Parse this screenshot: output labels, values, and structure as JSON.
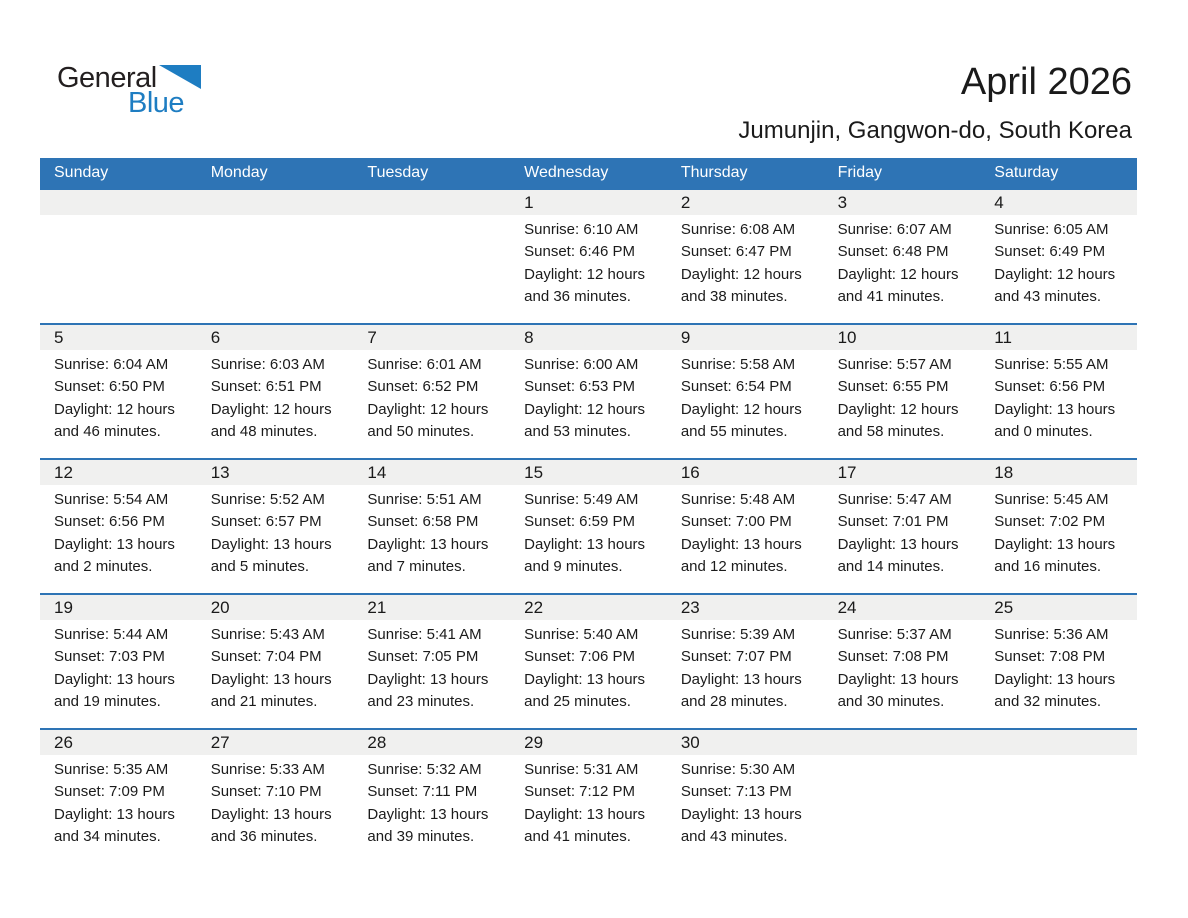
{
  "logo": {
    "text_top": "General",
    "text_bottom": "Blue",
    "colors": {
      "dark": "#231F20",
      "blue": "#1E7DC2"
    }
  },
  "header": {
    "title": "April 2026",
    "subtitle": "Jumunjin, Gangwon-do, South Korea"
  },
  "calendar": {
    "colors": {
      "header_bg": "#2E74B5",
      "week_divider": "#2E74B5",
      "day_number_band_bg": "#F0F0EF",
      "header_text": "#FFFFFF",
      "body_text": "#1B1B1B"
    },
    "weekdays": [
      "Sunday",
      "Monday",
      "Tuesday",
      "Wednesday",
      "Thursday",
      "Friday",
      "Saturday"
    ],
    "weeks": [
      [
        null,
        null,
        null,
        {
          "num": "1",
          "lines": [
            "Sunrise: 6:10 AM",
            "Sunset: 6:46 PM",
            "Daylight: 12 hours",
            "and 36 minutes."
          ]
        },
        {
          "num": "2",
          "lines": [
            "Sunrise: 6:08 AM",
            "Sunset: 6:47 PM",
            "Daylight: 12 hours",
            "and 38 minutes."
          ]
        },
        {
          "num": "3",
          "lines": [
            "Sunrise: 6:07 AM",
            "Sunset: 6:48 PM",
            "Daylight: 12 hours",
            "and 41 minutes."
          ]
        },
        {
          "num": "4",
          "lines": [
            "Sunrise: 6:05 AM",
            "Sunset: 6:49 PM",
            "Daylight: 12 hours",
            "and 43 minutes."
          ]
        }
      ],
      [
        {
          "num": "5",
          "lines": [
            "Sunrise: 6:04 AM",
            "Sunset: 6:50 PM",
            "Daylight: 12 hours",
            "and 46 minutes."
          ]
        },
        {
          "num": "6",
          "lines": [
            "Sunrise: 6:03 AM",
            "Sunset: 6:51 PM",
            "Daylight: 12 hours",
            "and 48 minutes."
          ]
        },
        {
          "num": "7",
          "lines": [
            "Sunrise: 6:01 AM",
            "Sunset: 6:52 PM",
            "Daylight: 12 hours",
            "and 50 minutes."
          ]
        },
        {
          "num": "8",
          "lines": [
            "Sunrise: 6:00 AM",
            "Sunset: 6:53 PM",
            "Daylight: 12 hours",
            "and 53 minutes."
          ]
        },
        {
          "num": "9",
          "lines": [
            "Sunrise: 5:58 AM",
            "Sunset: 6:54 PM",
            "Daylight: 12 hours",
            "and 55 minutes."
          ]
        },
        {
          "num": "10",
          "lines": [
            "Sunrise: 5:57 AM",
            "Sunset: 6:55 PM",
            "Daylight: 12 hours",
            "and 58 minutes."
          ]
        },
        {
          "num": "11",
          "lines": [
            "Sunrise: 5:55 AM",
            "Sunset: 6:56 PM",
            "Daylight: 13 hours",
            "and 0 minutes."
          ]
        }
      ],
      [
        {
          "num": "12",
          "lines": [
            "Sunrise: 5:54 AM",
            "Sunset: 6:56 PM",
            "Daylight: 13 hours",
            "and 2 minutes."
          ]
        },
        {
          "num": "13",
          "lines": [
            "Sunrise: 5:52 AM",
            "Sunset: 6:57 PM",
            "Daylight: 13 hours",
            "and 5 minutes."
          ]
        },
        {
          "num": "14",
          "lines": [
            "Sunrise: 5:51 AM",
            "Sunset: 6:58 PM",
            "Daylight: 13 hours",
            "and 7 minutes."
          ]
        },
        {
          "num": "15",
          "lines": [
            "Sunrise: 5:49 AM",
            "Sunset: 6:59 PM",
            "Daylight: 13 hours",
            "and 9 minutes."
          ]
        },
        {
          "num": "16",
          "lines": [
            "Sunrise: 5:48 AM",
            "Sunset: 7:00 PM",
            "Daylight: 13 hours",
            "and 12 minutes."
          ]
        },
        {
          "num": "17",
          "lines": [
            "Sunrise: 5:47 AM",
            "Sunset: 7:01 PM",
            "Daylight: 13 hours",
            "and 14 minutes."
          ]
        },
        {
          "num": "18",
          "lines": [
            "Sunrise: 5:45 AM",
            "Sunset: 7:02 PM",
            "Daylight: 13 hours",
            "and 16 minutes."
          ]
        }
      ],
      [
        {
          "num": "19",
          "lines": [
            "Sunrise: 5:44 AM",
            "Sunset: 7:03 PM",
            "Daylight: 13 hours",
            "and 19 minutes."
          ]
        },
        {
          "num": "20",
          "lines": [
            "Sunrise: 5:43 AM",
            "Sunset: 7:04 PM",
            "Daylight: 13 hours",
            "and 21 minutes."
          ]
        },
        {
          "num": "21",
          "lines": [
            "Sunrise: 5:41 AM",
            "Sunset: 7:05 PM",
            "Daylight: 13 hours",
            "and 23 minutes."
          ]
        },
        {
          "num": "22",
          "lines": [
            "Sunrise: 5:40 AM",
            "Sunset: 7:06 PM",
            "Daylight: 13 hours",
            "and 25 minutes."
          ]
        },
        {
          "num": "23",
          "lines": [
            "Sunrise: 5:39 AM",
            "Sunset: 7:07 PM",
            "Daylight: 13 hours",
            "and 28 minutes."
          ]
        },
        {
          "num": "24",
          "lines": [
            "Sunrise: 5:37 AM",
            "Sunset: 7:08 PM",
            "Daylight: 13 hours",
            "and 30 minutes."
          ]
        },
        {
          "num": "25",
          "lines": [
            "Sunrise: 5:36 AM",
            "Sunset: 7:08 PM",
            "Daylight: 13 hours",
            "and 32 minutes."
          ]
        }
      ],
      [
        {
          "num": "26",
          "lines": [
            "Sunrise: 5:35 AM",
            "Sunset: 7:09 PM",
            "Daylight: 13 hours",
            "and 34 minutes."
          ]
        },
        {
          "num": "27",
          "lines": [
            "Sunrise: 5:33 AM",
            "Sunset: 7:10 PM",
            "Daylight: 13 hours",
            "and 36 minutes."
          ]
        },
        {
          "num": "28",
          "lines": [
            "Sunrise: 5:32 AM",
            "Sunset: 7:11 PM",
            "Daylight: 13 hours",
            "and 39 minutes."
          ]
        },
        {
          "num": "29",
          "lines": [
            "Sunrise: 5:31 AM",
            "Sunset: 7:12 PM",
            "Daylight: 13 hours",
            "and 41 minutes."
          ]
        },
        {
          "num": "30",
          "lines": [
            "Sunrise: 5:30 AM",
            "Sunset: 7:13 PM",
            "Daylight: 13 hours",
            "and 43 minutes."
          ]
        },
        null,
        null
      ]
    ]
  }
}
